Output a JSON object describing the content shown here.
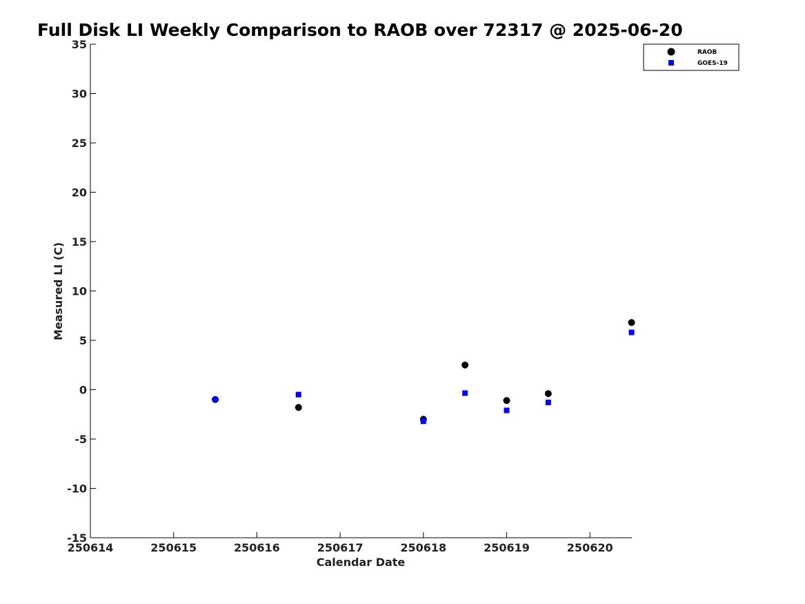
{
  "chart_data": {
    "type": "scatter",
    "title": "Full Disk LI Weekly Comparison to RAOB over 72317 @ 2025-06-20",
    "xlabel": "Calendar Date",
    "ylabel": "Measured LI (C)",
    "xlim": [
      250614,
      250620.5
    ],
    "ylim": [
      -15,
      35
    ],
    "xticks": [
      250614,
      250615,
      250616,
      250617,
      250618,
      250619,
      250620
    ],
    "xtick_labels": [
      "250614",
      "250615",
      "250616",
      "250617",
      "250618",
      "250619",
      "250620"
    ],
    "yticks": [
      35,
      30,
      25,
      20,
      15,
      10,
      5,
      0,
      -5,
      -10,
      -15
    ],
    "ytick_labels": [
      "35",
      "30",
      "25",
      "20",
      "15",
      "10",
      "5",
      "0",
      "-5",
      "-10",
      "-15"
    ],
    "grid": false,
    "legend_position": "top-right",
    "series": [
      {
        "name": "RAOB",
        "marker": "circle",
        "color": "#000000",
        "x": [
          250615.5,
          250616.5,
          250618.0,
          250618.5,
          250619.0,
          250619.5,
          250620.5
        ],
        "y": [
          -1.0,
          -1.8,
          -3.0,
          2.5,
          -1.1,
          -0.4,
          6.8
        ]
      },
      {
        "name": "GOES-19",
        "marker": "square",
        "color": "#0000ff",
        "x": [
          250615.5,
          250616.5,
          250618.0,
          250618.5,
          250619.0,
          250619.5,
          250620.5
        ],
        "y": [
          -1.0,
          -0.5,
          -3.2,
          -0.35,
          -2.1,
          -1.3,
          5.8
        ]
      }
    ]
  }
}
